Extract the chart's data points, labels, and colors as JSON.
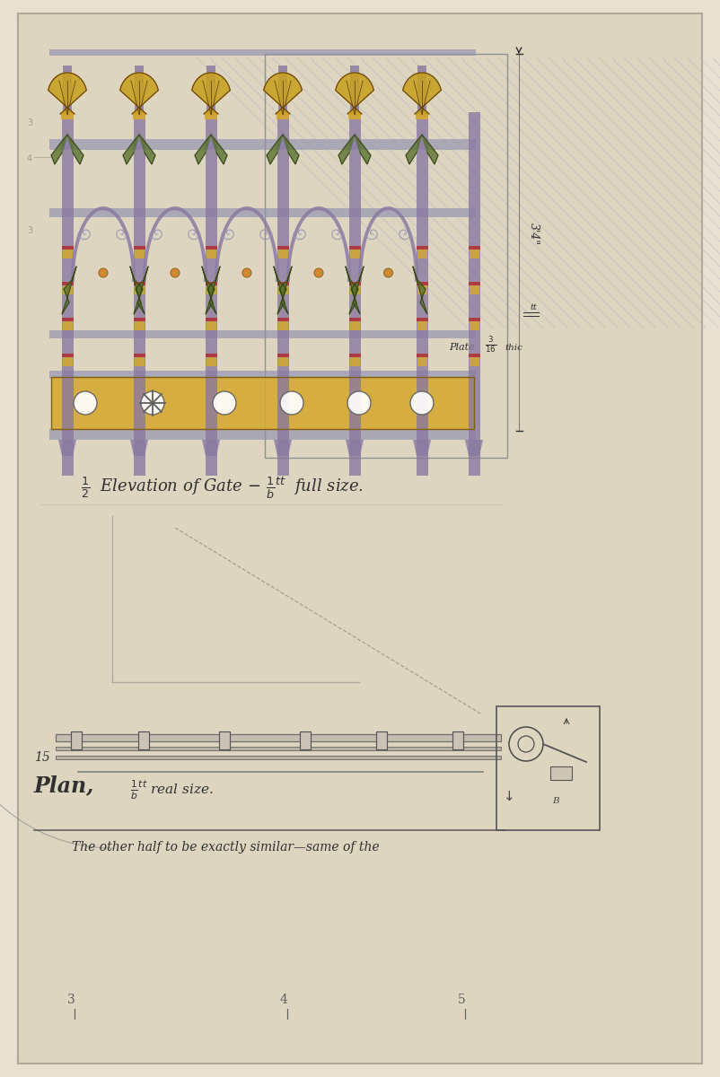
{
  "bg_color": "#e8e0d0",
  "paper_color": "#ddd5c0",
  "border_color": "#b0a898",
  "purple_col": "#8878a0",
  "yellow_col": "#d4a830",
  "gold_col": "#c8a020",
  "green_col": "#5a7030",
  "red_col": "#b03030",
  "blue_gray": "#9090b0",
  "hatch_color": "#b0b0c8",
  "text_color": "#303030",
  "title_text": "1/2  Elevation of Gate  full size.",
  "plan_text": "Plan,  real size.",
  "subtitle_text": "The other half to be exactly similar same of the",
  "dim1": "3",
  "dim2": "4",
  "dim3": "5"
}
